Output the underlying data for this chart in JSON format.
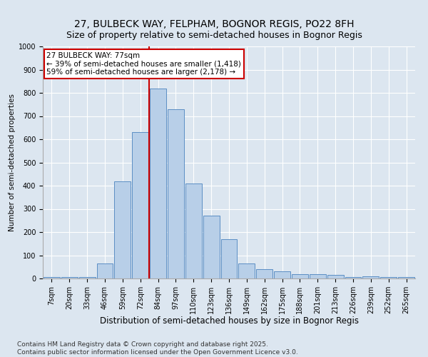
{
  "title": "27, BULBECK WAY, FELPHAM, BOGNOR REGIS, PO22 8FH",
  "subtitle": "Size of property relative to semi-detached houses in Bognor Regis",
  "xlabel": "Distribution of semi-detached houses by size in Bognor Regis",
  "ylabel": "Number of semi-detached properties",
  "categories": [
    "7sqm",
    "20sqm",
    "33sqm",
    "46sqm",
    "59sqm",
    "72sqm",
    "84sqm",
    "97sqm",
    "110sqm",
    "123sqm",
    "136sqm",
    "149sqm",
    "162sqm",
    "175sqm",
    "188sqm",
    "201sqm",
    "213sqm",
    "226sqm",
    "239sqm",
    "252sqm",
    "265sqm"
  ],
  "values": [
    5,
    5,
    5,
    65,
    420,
    630,
    820,
    730,
    410,
    270,
    170,
    65,
    40,
    30,
    20,
    20,
    15,
    5,
    10,
    5,
    5
  ],
  "bar_color": "#b8cfe8",
  "bar_edge_color": "#5b8ec4",
  "vline_bar_index": 6,
  "vline_color": "#cc0000",
  "annotation_title": "27 BULBECK WAY: 77sqm",
  "annotation_line1": "← 39% of semi-detached houses are smaller (1,418)",
  "annotation_line2": "59% of semi-detached houses are larger (2,178) →",
  "ylim": [
    0,
    1000
  ],
  "yticks": [
    0,
    100,
    200,
    300,
    400,
    500,
    600,
    700,
    800,
    900,
    1000
  ],
  "footer1": "Contains HM Land Registry data © Crown copyright and database right 2025.",
  "footer2": "Contains public sector information licensed under the Open Government Licence v3.0.",
  "bg_color": "#dce6f0",
  "plot_bg_color": "#dce6f0",
  "title_fontsize": 10,
  "xlabel_fontsize": 8.5,
  "ylabel_fontsize": 7.5,
  "tick_fontsize": 7,
  "annotation_fontsize": 7.5,
  "footer_fontsize": 6.5
}
